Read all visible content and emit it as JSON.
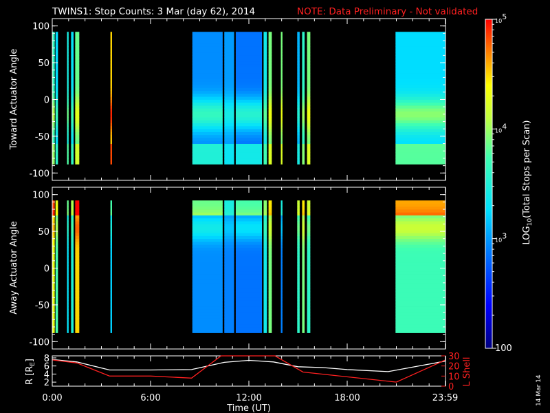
{
  "header": {
    "title": "TWINS1: Stop Counts:  3 Mar (day  62), 2014",
    "note": "NOTE: Data Preliminary - Not validated"
  },
  "stamp": "14 Mar 14",
  "colors": {
    "background": "#000000",
    "axes": "#ffffff",
    "note": "#ff2020",
    "lshell": "#ff2020",
    "radius": "#ffffff"
  },
  "chart_data": [
    {
      "type": "heatmap",
      "name": "toward",
      "ylabel": "Toward Actuator Angle",
      "ylim": [
        -110,
        110
      ],
      "yticks": [
        "100",
        "50",
        "0",
        "-50",
        "-100"
      ],
      "ytick_values": [
        100,
        50,
        0,
        -50,
        -100
      ],
      "angle_range": [
        -88,
        90
      ],
      "segments": [
        {
          "start": 0.0,
          "end": 0.15,
          "level": 3.65
        },
        {
          "start": 0.2,
          "end": 0.35,
          "level": 3.25
        },
        {
          "start": 0.9,
          "end": 1.0,
          "level": 3.45
        },
        {
          "start": 1.15,
          "end": 1.3,
          "level": 3.3
        },
        {
          "start": 1.4,
          "end": 1.65,
          "level": 3.85
        },
        {
          "start": 3.55,
          "end": 3.65,
          "level": 4.5
        },
        {
          "start": 8.55,
          "end": 10.4,
          "level": 2.95
        },
        {
          "start": 10.5,
          "end": 11.1,
          "level": 3.0
        },
        {
          "start": 11.2,
          "end": 12.8,
          "level": 2.85
        },
        {
          "start": 12.9,
          "end": 13.1,
          "level": 3.4
        },
        {
          "start": 13.2,
          "end": 13.4,
          "level": 3.9
        },
        {
          "start": 13.95,
          "end": 14.05,
          "level": 3.9
        },
        {
          "start": 14.95,
          "end": 15.1,
          "level": 3.1
        },
        {
          "start": 15.25,
          "end": 15.4,
          "level": 3.6
        },
        {
          "start": 15.55,
          "end": 15.75,
          "level": 3.9
        },
        {
          "start": 20.95,
          "end": 23.99,
          "level": 3.25
        }
      ]
    },
    {
      "type": "heatmap",
      "name": "away",
      "ylabel": "Away Actuator Angle",
      "ylim": [
        -110,
        110
      ],
      "yticks": [
        "100",
        "50",
        "0",
        "-50",
        "-100"
      ],
      "ytick_values": [
        100,
        50,
        0,
        -50,
        -100
      ],
      "angle_range": [
        -88,
        90
      ],
      "segments": [
        {
          "start": 0.0,
          "end": 0.15,
          "level": 4.3
        },
        {
          "start": 0.2,
          "end": 0.35,
          "level": 3.75
        },
        {
          "start": 0.9,
          "end": 1.0,
          "level": 3.3
        },
        {
          "start": 1.15,
          "end": 1.3,
          "level": 3.5
        },
        {
          "start": 1.4,
          "end": 1.65,
          "level": 4.5
        },
        {
          "start": 3.55,
          "end": 3.65,
          "level": 3.2
        },
        {
          "start": 8.55,
          "end": 10.4,
          "level": 2.95
        },
        {
          "start": 10.5,
          "end": 11.1,
          "level": 2.9
        },
        {
          "start": 11.2,
          "end": 12.8,
          "level": 2.85
        },
        {
          "start": 12.9,
          "end": 13.1,
          "level": 3.4
        },
        {
          "start": 13.2,
          "end": 13.4,
          "level": 3.9
        },
        {
          "start": 13.95,
          "end": 14.05,
          "level": 2.9
        },
        {
          "start": 14.95,
          "end": 15.1,
          "level": 3.6
        },
        {
          "start": 15.25,
          "end": 15.4,
          "level": 3.9
        },
        {
          "start": 15.55,
          "end": 15.75,
          "level": 3.6
        },
        {
          "start": 20.95,
          "end": 23.99,
          "level": 3.7
        }
      ]
    },
    {
      "type": "line",
      "name": "orbit",
      "xlabel": "Time (UT)",
      "xlim": [
        0,
        24
      ],
      "xticks": [
        "0:00",
        "6:00",
        "12:00",
        "18:00",
        "23:59"
      ],
      "xtick_values": [
        0,
        6,
        12,
        18,
        23.98
      ],
      "left_axis": {
        "label": "R [R",
        "sub": "E",
        "close": "]",
        "ylim": [
          1,
          8.5
        ],
        "ticks": [
          "8",
          "6",
          "4",
          "2"
        ],
        "tick_values": [
          8,
          6,
          4,
          2
        ]
      },
      "right_axis": {
        "label": "L Shell",
        "ylim": [
          0,
          30
        ],
        "ticks": [
          "30",
          "20",
          "10",
          "0"
        ],
        "tick_values": [
          30,
          20,
          10,
          0
        ]
      },
      "series": [
        {
          "axis": "left",
          "x": [
            0,
            1.5,
            3.5,
            6.0,
            8.5,
            10.5,
            12.0,
            13.5,
            15.0,
            16.5,
            18.0,
            20.5,
            22.5,
            24.0
          ],
          "y": [
            7.6,
            7.0,
            5.0,
            5.0,
            5.1,
            6.9,
            7.4,
            7.0,
            5.8,
            5.6,
            5.1,
            4.6,
            6.1,
            7.2
          ]
        },
        {
          "axis": "right",
          "x": [
            0,
            1.5,
            3.5,
            6.0,
            8.5,
            10.3,
            10.35,
            13.55,
            13.6,
            15.3,
            21.0,
            24.0
          ],
          "y": [
            26,
            23,
            10,
            10,
            8,
            30,
            30,
            30,
            30,
            14,
            4,
            26
          ]
        }
      ]
    },
    {
      "type": "colorbar",
      "label": "LOG",
      "label_sub": "10",
      "label_rest": "(Total Stops per Scan)",
      "ticks": [
        {
          "base": "10",
          "exp": "5",
          "value": 5
        },
        {
          "base": "10",
          "exp": "4",
          "value": 4
        },
        {
          "base": "10",
          "exp": "3",
          "value": 3
        },
        {
          "base": "100",
          "exp": "",
          "value": 2
        }
      ],
      "range": [
        2,
        5
      ]
    }
  ]
}
